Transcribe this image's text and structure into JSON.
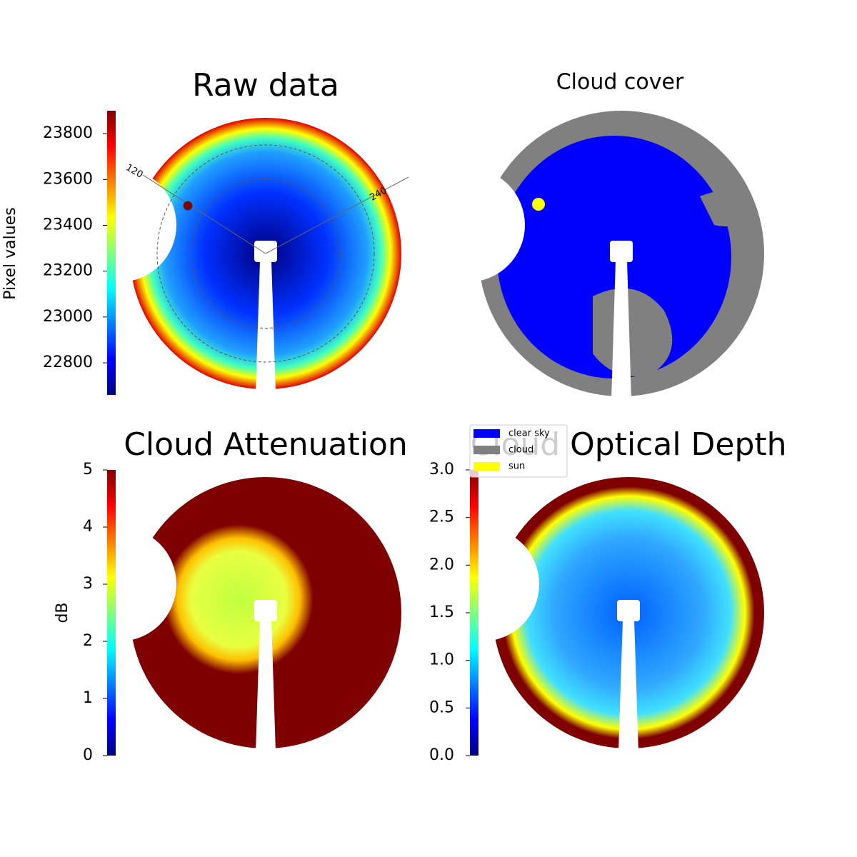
{
  "chart_data": [
    {
      "type": "heatmap",
      "title": "Raw data",
      "colormap": "jet",
      "colorbar_label": "Pixel values",
      "ylim": [
        22660,
        23900
      ],
      "yticks": [
        22800,
        23000,
        23200,
        23400,
        23600,
        23800
      ],
      "annotations": [
        "120",
        "240"
      ]
    },
    {
      "type": "categorical",
      "title": "Cloud cover",
      "series": [
        {
          "name": "clear sky",
          "color": "#0000ff"
        },
        {
          "name": "cloud",
          "color": "#808080"
        },
        {
          "name": "sun",
          "color": "#ffff00"
        }
      ]
    },
    {
      "type": "heatmap",
      "title": "Cloud Attenuation",
      "colormap": "jet",
      "colorbar_label": "dB",
      "ylim": [
        0,
        5
      ],
      "yticks": [
        0,
        1,
        2,
        3,
        4,
        5
      ]
    },
    {
      "type": "heatmap",
      "title": "Cloud Optical Depth",
      "colormap": "jet",
      "ylim": [
        0,
        3
      ],
      "yticks": [
        {
          "value": 0,
          "label": "0.0"
        },
        0.5,
        {
          "value": 1,
          "label": "1.0"
        },
        1.5,
        {
          "value": 2,
          "label": "2.0"
        },
        2.5,
        {
          "value": 3,
          "label": "3.0"
        }
      ]
    }
  ]
}
